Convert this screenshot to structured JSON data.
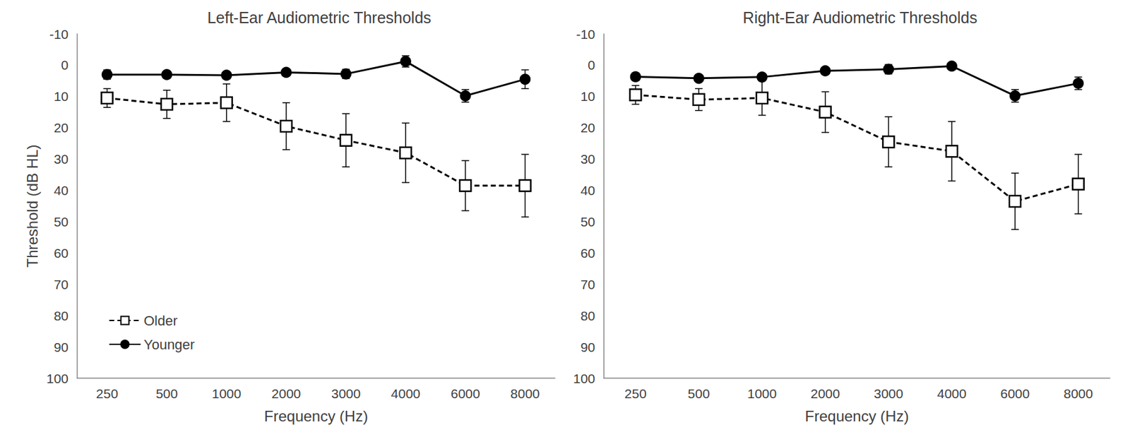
{
  "chart_data": [
    {
      "type": "line",
      "title": "Left-Ear Audiometric Thresholds",
      "x_label": "Frequency (Hz)",
      "y_label": "Threshold (dB HL)",
      "categories": [
        "250",
        "500",
        "1000",
        "2000",
        "3000",
        "4000",
        "6000",
        "8000"
      ],
      "ylim": [
        -10,
        100
      ],
      "yticks": [
        -10,
        0,
        10,
        20,
        30,
        40,
        50,
        60,
        70,
        80,
        90,
        100
      ],
      "grid": false,
      "legend": "lower left",
      "series": [
        {
          "name": "Older",
          "color": "#000000",
          "marker": "square_open",
          "line_style": "dashed",
          "values": [
            10.5,
            12.5,
            12,
            19.5,
            24,
            28,
            38.5,
            38.5
          ],
          "errors": [
            3,
            4.5,
            6,
            7.5,
            8.5,
            9.5,
            8,
            10
          ]
        },
        {
          "name": "Younger",
          "color": "#000000",
          "marker": "circle",
          "line_style": "solid",
          "values": [
            3,
            3,
            3.2,
            2.3,
            2.8,
            -1.2,
            9.8,
            4.5
          ],
          "errors": [
            1.5,
            1,
            1,
            1,
            1.5,
            1.8,
            2,
            3
          ]
        }
      ]
    },
    {
      "type": "line",
      "title": "Right-Ear Audiometric Thresholds",
      "x_label": "Frequency (Hz)",
      "categories": [
        "250",
        "500",
        "1000",
        "2000",
        "3000",
        "4000",
        "6000",
        "8000"
      ],
      "ylim": [
        -10,
        100
      ],
      "yticks": [
        -10,
        0,
        10,
        20,
        30,
        40,
        50,
        60,
        70,
        80,
        90,
        100
      ],
      "grid": false,
      "series": [
        {
          "name": "Older",
          "color": "#000000",
          "marker": "square_open",
          "line_style": "dashed",
          "values": [
            9.5,
            11,
            10.5,
            15,
            24.5,
            27.5,
            43.5,
            38
          ],
          "errors": [
            3,
            3.5,
            5.5,
            6.5,
            8,
            9.5,
            9,
            9.5
          ]
        },
        {
          "name": "Younger",
          "color": "#000000",
          "marker": "circle",
          "line_style": "solid",
          "values": [
            3.7,
            4.2,
            3.8,
            1.8,
            1.3,
            0.3,
            9.8,
            5.8
          ],
          "errors": [
            1.2,
            1,
            1,
            1,
            1.5,
            1,
            2,
            2
          ]
        }
      ]
    }
  ]
}
